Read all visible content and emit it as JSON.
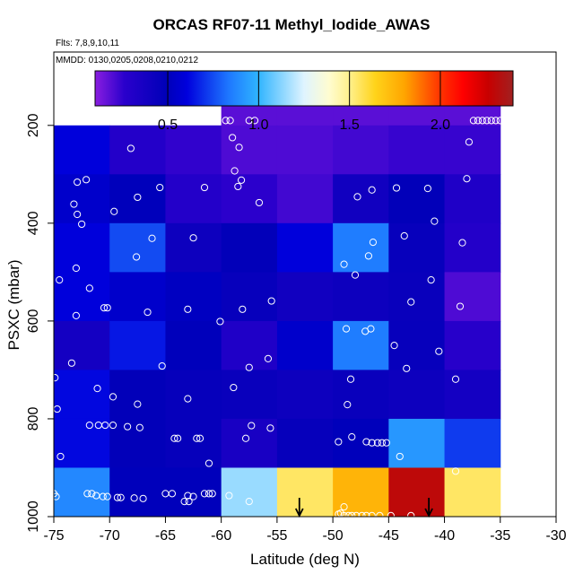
{
  "chart_data": {
    "type": "heatmap",
    "title": "ORCAS RF07-11 Methyl_Iodide_AWAS",
    "flights_note": "Flts: 7,8,9,10,11",
    "dates_note": "MMDD: 0130,0205,0208,0210,0212",
    "xlabel": "Latitude (deg N)",
    "ylabel": "PSXC (mbar)",
    "xlim": [
      -75,
      -30
    ],
    "ylim": [
      1000,
      50
    ],
    "x_ticks": [
      -75,
      -70,
      -65,
      -60,
      -55,
      -50,
      -45,
      -40,
      -35,
      -30
    ],
    "y_ticks": [
      200,
      400,
      600,
      800,
      1000
    ],
    "colorbar": {
      "range": [
        0.1,
        2.4
      ],
      "ticks": [
        0.5,
        1.0,
        1.5,
        2.0
      ],
      "tick_labels": [
        "0.5",
        "1.0",
        "1.5",
        "2.0"
      ]
    },
    "cell_size": {
      "lat": 5,
      "pressure": 100
    },
    "cells": [
      {
        "lat": -60,
        "p": 100,
        "v": 0.18
      },
      {
        "lat": -55,
        "p": 100,
        "v": 0.18
      },
      {
        "lat": -50,
        "p": 100,
        "v": 0.18
      },
      {
        "lat": -45,
        "p": 100,
        "v": 0.18
      },
      {
        "lat": -40,
        "p": 100,
        "v": 0.18
      },
      {
        "lat": -75,
        "p": 200,
        "v": 0.6
      },
      {
        "lat": -70,
        "p": 200,
        "v": 0.3
      },
      {
        "lat": -65,
        "p": 200,
        "v": 0.25
      },
      {
        "lat": -60,
        "p": 200,
        "v": 0.2
      },
      {
        "lat": -55,
        "p": 200,
        "v": 0.2
      },
      {
        "lat": -50,
        "p": 200,
        "v": 0.22
      },
      {
        "lat": -45,
        "p": 200,
        "v": 0.24
      },
      {
        "lat": -40,
        "p": 200,
        "v": 0.24
      },
      {
        "lat": -75,
        "p": 300,
        "v": 0.55
      },
      {
        "lat": -70,
        "p": 300,
        "v": 0.5
      },
      {
        "lat": -65,
        "p": 300,
        "v": 0.3
      },
      {
        "lat": -60,
        "p": 300,
        "v": 0.26
      },
      {
        "lat": -55,
        "p": 300,
        "v": 0.22
      },
      {
        "lat": -50,
        "p": 300,
        "v": 0.4
      },
      {
        "lat": -45,
        "p": 300,
        "v": 0.48
      },
      {
        "lat": -40,
        "p": 300,
        "v": 0.32
      },
      {
        "lat": -75,
        "p": 400,
        "v": 0.6
      },
      {
        "lat": -70,
        "p": 400,
        "v": 0.75
      },
      {
        "lat": -65,
        "p": 400,
        "v": 0.42
      },
      {
        "lat": -60,
        "p": 400,
        "v": 0.48
      },
      {
        "lat": -55,
        "p": 400,
        "v": 0.6
      },
      {
        "lat": -50,
        "p": 400,
        "v": 0.85
      },
      {
        "lat": -45,
        "p": 400,
        "v": 0.45
      },
      {
        "lat": -40,
        "p": 400,
        "v": 0.3
      },
      {
        "lat": -75,
        "p": 500,
        "v": 0.6
      },
      {
        "lat": -70,
        "p": 500,
        "v": 0.55
      },
      {
        "lat": -65,
        "p": 500,
        "v": 0.52
      },
      {
        "lat": -60,
        "p": 500,
        "v": 0.45
      },
      {
        "lat": -55,
        "p": 500,
        "v": 0.4
      },
      {
        "lat": -50,
        "p": 500,
        "v": 0.42
      },
      {
        "lat": -45,
        "p": 500,
        "v": 0.44
      },
      {
        "lat": -40,
        "p": 500,
        "v": 0.2
      },
      {
        "lat": -75,
        "p": 600,
        "v": 0.38
      },
      {
        "lat": -70,
        "p": 600,
        "v": 0.65
      },
      {
        "lat": -65,
        "p": 600,
        "v": 0.5
      },
      {
        "lat": -60,
        "p": 600,
        "v": 0.32
      },
      {
        "lat": -55,
        "p": 600,
        "v": 0.55
      },
      {
        "lat": -50,
        "p": 600,
        "v": 0.85
      },
      {
        "lat": -45,
        "p": 600,
        "v": 0.45
      },
      {
        "lat": -40,
        "p": 600,
        "v": 0.28
      },
      {
        "lat": -75,
        "p": 700,
        "v": 0.62
      },
      {
        "lat": -70,
        "p": 700,
        "v": 0.48
      },
      {
        "lat": -65,
        "p": 700,
        "v": 0.46
      },
      {
        "lat": -60,
        "p": 700,
        "v": 0.44
      },
      {
        "lat": -55,
        "p": 700,
        "v": 0.42
      },
      {
        "lat": -50,
        "p": 700,
        "v": 0.44
      },
      {
        "lat": -45,
        "p": 700,
        "v": 0.42
      },
      {
        "lat": -40,
        "p": 700,
        "v": 0.38
      },
      {
        "lat": -75,
        "p": 800,
        "v": 0.62
      },
      {
        "lat": -70,
        "p": 800,
        "v": 0.48
      },
      {
        "lat": -65,
        "p": 800,
        "v": 0.46
      },
      {
        "lat": -60,
        "p": 800,
        "v": 0.36
      },
      {
        "lat": -55,
        "p": 800,
        "v": 0.46
      },
      {
        "lat": -50,
        "p": 800,
        "v": 0.5
      },
      {
        "lat": -45,
        "p": 800,
        "v": 0.92
      },
      {
        "lat": -40,
        "p": 800,
        "v": 0.72
      },
      {
        "lat": -75,
        "p": 900,
        "v": 0.88
      },
      {
        "lat": -70,
        "p": 900,
        "v": 0.5
      },
      {
        "lat": -65,
        "p": 900,
        "v": 0.5
      },
      {
        "lat": -60,
        "p": 900,
        "v": 1.15
      },
      {
        "lat": -55,
        "p": 900,
        "v": 1.55
      },
      {
        "lat": -50,
        "p": 900,
        "v": 1.75
      },
      {
        "lat": -45,
        "p": 900,
        "v": 2.3
      },
      {
        "lat": -40,
        "p": 900,
        "v": 1.55
      }
    ],
    "samples": [
      {
        "lat": -59.6,
        "p": 190
      },
      {
        "lat": -59.2,
        "p": 190
      },
      {
        "lat": -57.5,
        "p": 190
      },
      {
        "lat": -57.0,
        "p": 190
      },
      {
        "lat": -59.0,
        "p": 225
      },
      {
        "lat": -58.4,
        "p": 245
      },
      {
        "lat": -68.1,
        "p": 247
      },
      {
        "lat": -58.8,
        "p": 293
      },
      {
        "lat": -58.5,
        "p": 325
      },
      {
        "lat": -58.2,
        "p": 312
      },
      {
        "lat": -56.6,
        "p": 358
      },
      {
        "lat": -72.9,
        "p": 316
      },
      {
        "lat": -72.1,
        "p": 311
      },
      {
        "lat": -65.5,
        "p": 327
      },
      {
        "lat": -61.5,
        "p": 327
      },
      {
        "lat": -73.2,
        "p": 361
      },
      {
        "lat": -72.9,
        "p": 382
      },
      {
        "lat": -72.5,
        "p": 402
      },
      {
        "lat": -67.5,
        "p": 347
      },
      {
        "lat": -69.6,
        "p": 376
      },
      {
        "lat": -47.8,
        "p": 346
      },
      {
        "lat": -46.5,
        "p": 332
      },
      {
        "lat": -44.3,
        "p": 328
      },
      {
        "lat": -41.5,
        "p": 329
      },
      {
        "lat": -40.9,
        "p": 396
      },
      {
        "lat": -38.0,
        "p": 309
      },
      {
        "lat": -37.0,
        "p": 190
      },
      {
        "lat": -36.6,
        "p": 190
      },
      {
        "lat": -36.2,
        "p": 190
      },
      {
        "lat": -35.8,
        "p": 190
      },
      {
        "lat": -35.4,
        "p": 190
      },
      {
        "lat": -35.0,
        "p": 190
      },
      {
        "lat": -37.4,
        "p": 190
      },
      {
        "lat": -37.8,
        "p": 234
      },
      {
        "lat": -66.2,
        "p": 431
      },
      {
        "lat": -67.6,
        "p": 469
      },
      {
        "lat": -62.5,
        "p": 430
      },
      {
        "lat": -73.0,
        "p": 492
      },
      {
        "lat": -74.5,
        "p": 516
      },
      {
        "lat": -71.8,
        "p": 533
      },
      {
        "lat": -46.4,
        "p": 439
      },
      {
        "lat": -46.8,
        "p": 467
      },
      {
        "lat": -48.0,
        "p": 506
      },
      {
        "lat": -49.0,
        "p": 484
      },
      {
        "lat": -43.6,
        "p": 426
      },
      {
        "lat": -41.2,
        "p": 516
      },
      {
        "lat": -38.4,
        "p": 440
      },
      {
        "lat": -70.2,
        "p": 573
      },
      {
        "lat": -70.5,
        "p": 573
      },
      {
        "lat": -73.0,
        "p": 589
      },
      {
        "lat": -66.6,
        "p": 582
      },
      {
        "lat": -63.0,
        "p": 576
      },
      {
        "lat": -60.1,
        "p": 601
      },
      {
        "lat": -58.1,
        "p": 576
      },
      {
        "lat": -55.5,
        "p": 559
      },
      {
        "lat": -43.0,
        "p": 561
      },
      {
        "lat": -38.6,
        "p": 570
      },
      {
        "lat": -48.8,
        "p": 616
      },
      {
        "lat": -47.1,
        "p": 621
      },
      {
        "lat": -46.6,
        "p": 616
      },
      {
        "lat": -44.5,
        "p": 650
      },
      {
        "lat": -65.3,
        "p": 692
      },
      {
        "lat": -73.4,
        "p": 686
      },
      {
        "lat": -74.9,
        "p": 716
      },
      {
        "lat": -71.1,
        "p": 738
      },
      {
        "lat": -57.5,
        "p": 695
      },
      {
        "lat": -55.8,
        "p": 677
      },
      {
        "lat": -40.5,
        "p": 662
      },
      {
        "lat": -43.4,
        "p": 697
      },
      {
        "lat": -39.0,
        "p": 719
      },
      {
        "lat": -48.4,
        "p": 719
      },
      {
        "lat": -58.9,
        "p": 736
      },
      {
        "lat": -63.0,
        "p": 759
      },
      {
        "lat": -67.5,
        "p": 770
      },
      {
        "lat": -69.7,
        "p": 755
      },
      {
        "lat": -74.7,
        "p": 780
      },
      {
        "lat": -48.7,
        "p": 771
      },
      {
        "lat": -71.8,
        "p": 813
      },
      {
        "lat": -71.0,
        "p": 813
      },
      {
        "lat": -70.4,
        "p": 813
      },
      {
        "lat": -69.7,
        "p": 813
      },
      {
        "lat": -68.4,
        "p": 816
      },
      {
        "lat": -67.3,
        "p": 818
      },
      {
        "lat": -57.3,
        "p": 814
      },
      {
        "lat": -55.6,
        "p": 819
      },
      {
        "lat": -64.2,
        "p": 840
      },
      {
        "lat": -63.9,
        "p": 840
      },
      {
        "lat": -62.2,
        "p": 840
      },
      {
        "lat": -61.9,
        "p": 840
      },
      {
        "lat": -57.8,
        "p": 840
      },
      {
        "lat": -49.5,
        "p": 847
      },
      {
        "lat": -47.0,
        "p": 847
      },
      {
        "lat": -46.5,
        "p": 849
      },
      {
        "lat": -46.0,
        "p": 849
      },
      {
        "lat": -45.6,
        "p": 849
      },
      {
        "lat": -45.2,
        "p": 849
      },
      {
        "lat": -48.3,
        "p": 837
      },
      {
        "lat": -74.4,
        "p": 877
      },
      {
        "lat": -61.1,
        "p": 891
      },
      {
        "lat": -44.0,
        "p": 877
      },
      {
        "lat": -39.0,
        "p": 907
      },
      {
        "lat": -75.0,
        "p": 953
      },
      {
        "lat": -74.8,
        "p": 959
      },
      {
        "lat": -72.0,
        "p": 953
      },
      {
        "lat": -71.6,
        "p": 953
      },
      {
        "lat": -71.2,
        "p": 957
      },
      {
        "lat": -70.6,
        "p": 959
      },
      {
        "lat": -70.2,
        "p": 959
      },
      {
        "lat": -69.3,
        "p": 961
      },
      {
        "lat": -69.0,
        "p": 961
      },
      {
        "lat": -67.8,
        "p": 962
      },
      {
        "lat": -67.0,
        "p": 963
      },
      {
        "lat": -65.0,
        "p": 953
      },
      {
        "lat": -64.4,
        "p": 953
      },
      {
        "lat": -63.0,
        "p": 957
      },
      {
        "lat": -62.5,
        "p": 959
      },
      {
        "lat": -61.5,
        "p": 953
      },
      {
        "lat": -61.1,
        "p": 953
      },
      {
        "lat": -60.8,
        "p": 953
      },
      {
        "lat": -63.3,
        "p": 969
      },
      {
        "lat": -62.9,
        "p": 969
      },
      {
        "lat": -59.3,
        "p": 957
      },
      {
        "lat": -57.5,
        "p": 969
      },
      {
        "lat": -49.5,
        "p": 995
      },
      {
        "lat": -49.3,
        "p": 993
      },
      {
        "lat": -49.0,
        "p": 998
      },
      {
        "lat": -48.6,
        "p": 998
      },
      {
        "lat": -48.3,
        "p": 998
      },
      {
        "lat": -47.9,
        "p": 998
      },
      {
        "lat": -47.4,
        "p": 998
      },
      {
        "lat": -47.0,
        "p": 998
      },
      {
        "lat": -46.5,
        "p": 998
      },
      {
        "lat": -45.8,
        "p": 998
      },
      {
        "lat": -44.8,
        "p": 998
      },
      {
        "lat": -43.0,
        "p": 998
      },
      {
        "lat": -49.0,
        "p": 980
      }
    ],
    "arrows": [
      {
        "lat": -53.0,
        "p": 1000
      },
      {
        "lat": -41.4,
        "p": 1000
      }
    ]
  }
}
